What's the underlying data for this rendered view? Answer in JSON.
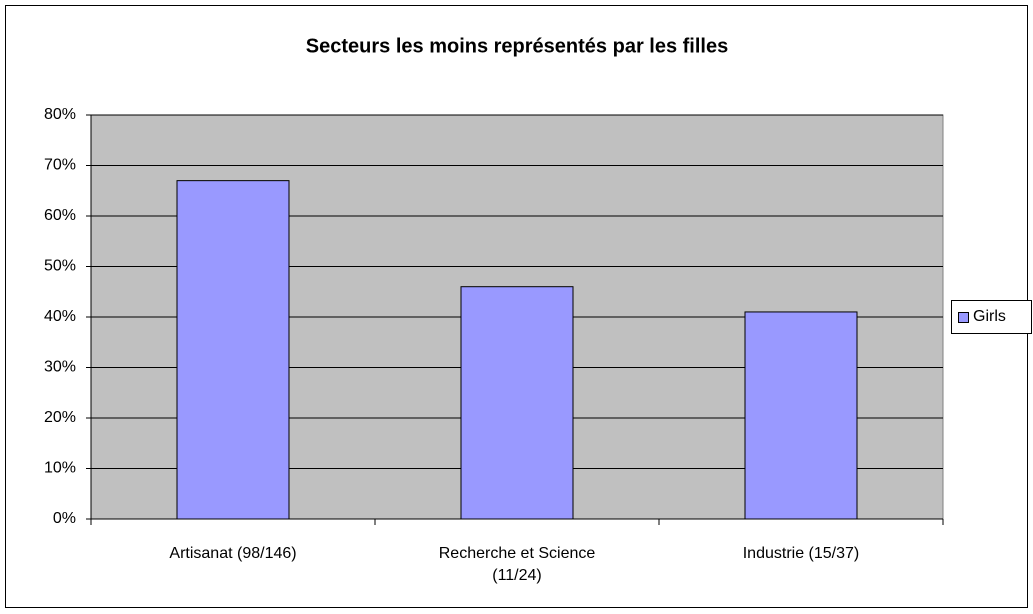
{
  "chart_data": {
    "type": "bar",
    "title": "Secteurs les moins représentés par les filles",
    "categories": [
      "Artisanat (98/146)",
      "Recherche et Science (11/24)",
      "Industrie (15/37)"
    ],
    "series": [
      {
        "name": "Girls",
        "color": "#9999ff",
        "values": [
          67,
          46,
          41
        ]
      }
    ],
    "ylim": [
      0,
      80
    ],
    "yticks": [
      {
        "value": 0,
        "label": "0%"
      },
      {
        "value": 10,
        "label": "10%"
      },
      {
        "value": 20,
        "label": "20%"
      },
      {
        "value": 30,
        "label": "30%"
      },
      {
        "value": 40,
        "label": "40%"
      },
      {
        "value": 50,
        "label": "50%"
      },
      {
        "value": 60,
        "label": "60%"
      },
      {
        "value": 70,
        "label": "70%"
      },
      {
        "value": 80,
        "label": "80%"
      }
    ],
    "grid": true,
    "legend": "right"
  }
}
